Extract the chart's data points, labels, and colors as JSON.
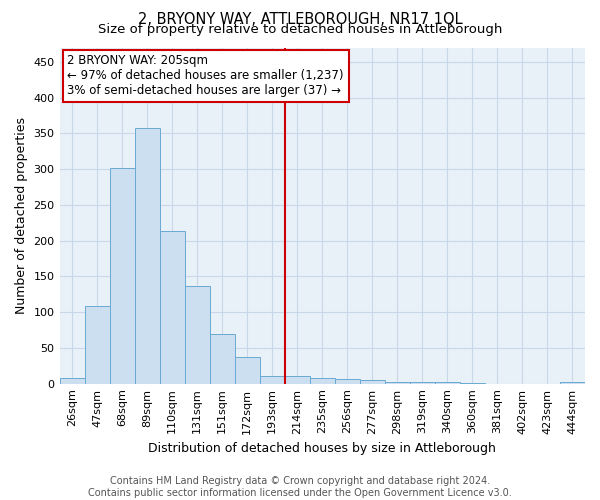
{
  "title": "2, BRYONY WAY, ATTLEBOROUGH, NR17 1QL",
  "subtitle": "Size of property relative to detached houses in Attleborough",
  "xlabel": "Distribution of detached houses by size in Attleborough",
  "ylabel": "Number of detached properties",
  "footer_line1": "Contains HM Land Registry data © Crown copyright and database right 2024.",
  "footer_line2": "Contains public sector information licensed under the Open Government Licence v3.0.",
  "bar_labels": [
    "26sqm",
    "47sqm",
    "68sqm",
    "89sqm",
    "110sqm",
    "131sqm",
    "151sqm",
    "172sqm",
    "193sqm",
    "214sqm",
    "235sqm",
    "256sqm",
    "277sqm",
    "298sqm",
    "319sqm",
    "340sqm",
    "360sqm",
    "381sqm",
    "402sqm",
    "423sqm",
    "444sqm"
  ],
  "bar_values": [
    8,
    108,
    301,
    358,
    213,
    136,
    70,
    38,
    11,
    11,
    8,
    6,
    5,
    3,
    2,
    2,
    1,
    0,
    0,
    0,
    3
  ],
  "bar_color": "#ccdff0",
  "bar_edge_color": "#6aaad4",
  "grid_color": "#c8d8e8",
  "background_color": "#e8f0f8",
  "vline_x_index": 8.5,
  "vline_color": "#cc0000",
  "annotation_text": "2 BRYONY WAY: 205sqm\n← 97% of detached houses are smaller (1,237)\n3% of semi-detached houses are larger (37) →",
  "annotation_box_color": "#cc0000",
  "ylim": [
    0,
    470
  ],
  "yticks": [
    0,
    50,
    100,
    150,
    200,
    250,
    300,
    350,
    400,
    450
  ],
  "title_fontsize": 10.5,
  "subtitle_fontsize": 9.5,
  "xlabel_fontsize": 9,
  "ylabel_fontsize": 9,
  "tick_fontsize": 8,
  "footer_fontsize": 7,
  "annotation_fontsize": 8.5
}
